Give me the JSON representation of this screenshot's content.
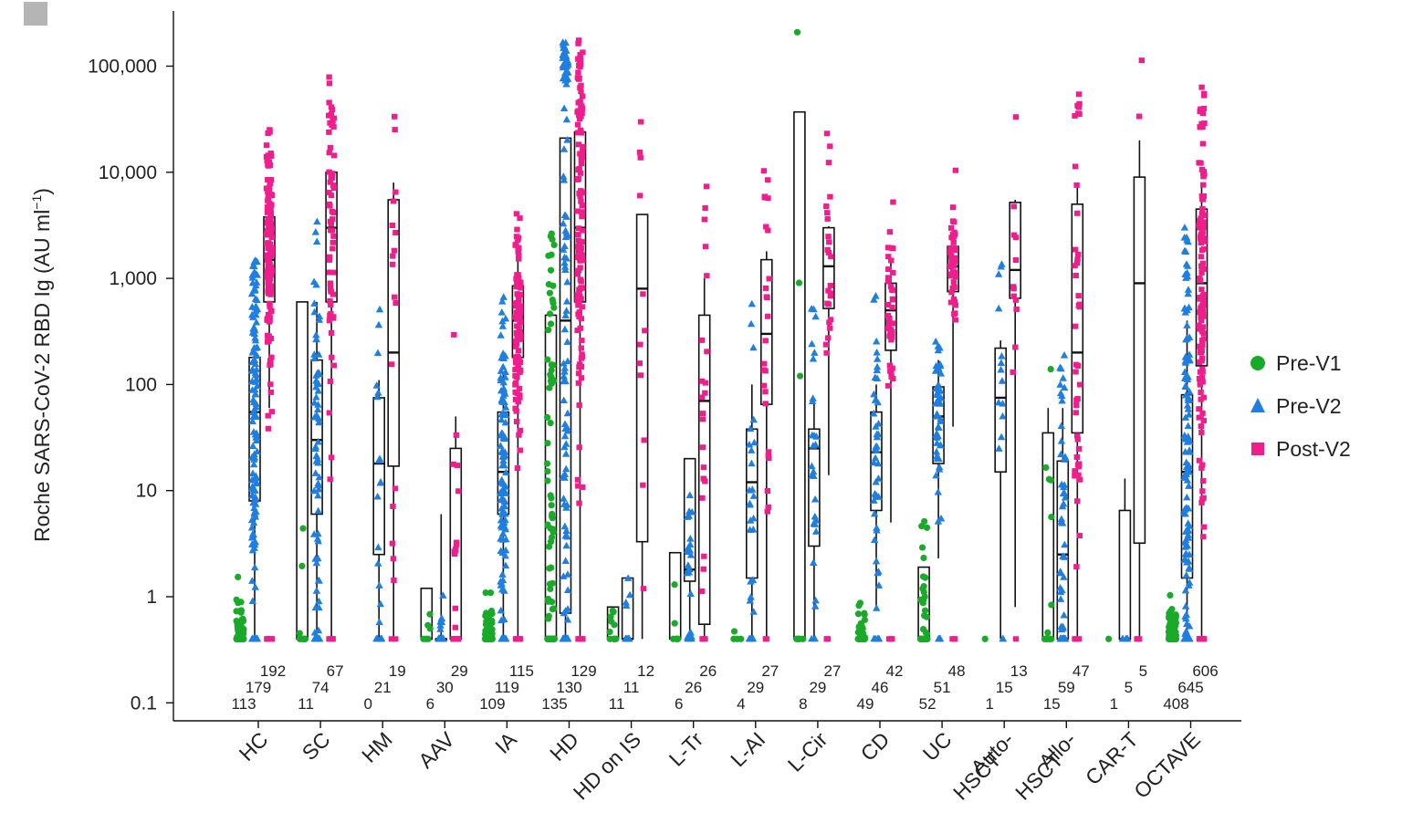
{
  "chart_data": {
    "type": "scatter",
    "ylabel": "Roche SARS-CoV-2 RBD Ig (AU ml",
    "ylabel_superscript": "−1",
    "ylabel_close": ")",
    "yscale": "log",
    "ylim": [
      0.1,
      300000
    ],
    "yticks": [
      {
        "value": 0.1,
        "label": "0.1"
      },
      {
        "value": 1,
        "label": "1"
      },
      {
        "value": 10,
        "label": "10"
      },
      {
        "value": 100,
        "label": "100"
      },
      {
        "value": 1000,
        "label": "1,000"
      },
      {
        "value": 10000,
        "label": "10,000"
      },
      {
        "value": 100000,
        "label": "100,000"
      }
    ],
    "series": [
      {
        "name": "Pre-V1",
        "color": "#1aaa2a",
        "marker": "circle"
      },
      {
        "name": "Pre-V2",
        "color": "#1f7fe0",
        "marker": "triangle"
      },
      {
        "name": "Post-V2",
        "color": "#ee1f8c",
        "marker": "square"
      }
    ],
    "categories": [
      {
        "label": [
          "HC"
        ],
        "counts": [
          113,
          179,
          192
        ],
        "boxes": [
          null,
          [
            0.4,
            8,
            55,
            180,
            190
          ],
          [
            60,
            600,
            1500,
            3800,
            3900
          ]
        ]
      },
      {
        "label": [
          "SC"
        ],
        "counts": [
          11,
          74,
          67
        ],
        "boxes": [
          [
            0.4,
            0.4,
            0.4,
            600,
            600
          ],
          [
            0.4,
            6,
            30,
            170,
            600
          ],
          [
            0.4,
            600,
            3000,
            10000,
            10000
          ]
        ]
      },
      {
        "label": [
          "HM"
        ],
        "counts": [
          0,
          21,
          19
        ],
        "boxes": [
          null,
          [
            0.4,
            2.5,
            18,
            75,
            110
          ],
          [
            0.4,
            17,
            200,
            5500,
            8000
          ]
        ]
      },
      {
        "label": [
          "AAV"
        ],
        "counts": [
          6,
          30,
          29
        ],
        "boxes": [
          [
            0.4,
            0.4,
            0.4,
            1.2,
            1.2
          ],
          [
            0.4,
            0.4,
            0.4,
            0.4,
            6
          ],
          [
            0.4,
            0.4,
            0.4,
            25,
            50
          ]
        ]
      },
      {
        "label": [
          "IA"
        ],
        "counts": [
          109,
          119,
          115
        ],
        "boxes": [
          null,
          [
            0.4,
            6,
            15,
            55,
            130
          ],
          [
            0.4,
            180,
            400,
            850,
            1500
          ]
        ]
      },
      {
        "label": [
          "HD"
        ],
        "counts": [
          135,
          130,
          129
        ],
        "boxes": [
          [
            0.4,
            0.4,
            0.4,
            450,
            450
          ],
          [
            0.4,
            0.7,
            400,
            21000,
            21000
          ],
          [
            0.4,
            600,
            3000,
            24000,
            24000
          ]
        ]
      },
      {
        "label": [
          "HD on IS"
        ],
        "counts": [
          11,
          11,
          12
        ],
        "boxes": [
          [
            0.4,
            0.4,
            0.4,
            0.8,
            0.8
          ],
          [
            0.4,
            0.4,
            0.4,
            1.5,
            1.5
          ],
          [
            0.4,
            3.3,
            800,
            4000,
            4000
          ]
        ]
      },
      {
        "label": [
          "L-Tr"
        ],
        "counts": [
          6,
          26,
          26
        ],
        "boxes": [
          [
            0.4,
            0.4,
            0.4,
            2.6,
            2.6
          ],
          [
            0.4,
            1.4,
            1.8,
            20,
            20
          ],
          [
            0.4,
            0.55,
            70,
            450,
            1000
          ]
        ]
      },
      {
        "label": [
          "L-AI"
        ],
        "counts": [
          4,
          29,
          27
        ],
        "boxes": [
          null,
          [
            0.4,
            1.5,
            12,
            38,
            100
          ],
          [
            0.4,
            65,
            300,
            1500,
            1800
          ]
        ]
      },
      {
        "label": [
          "L-Cir"
        ],
        "counts": [
          8,
          29,
          27
        ],
        "boxes": [
          [
            0.4,
            0.4,
            0.4,
            37000,
            37000
          ],
          [
            0.4,
            3,
            25,
            38,
            75
          ],
          [
            14,
            520,
            1300,
            3000,
            3100
          ]
        ]
      },
      {
        "label": [
          "CD"
        ],
        "counts": [
          49,
          46,
          42
        ],
        "boxes": [
          null,
          [
            0.8,
            6.5,
            23,
            55,
            100
          ],
          [
            5,
            210,
            500,
            900,
            1500
          ]
        ]
      },
      {
        "label": [
          "UC"
        ],
        "counts": [
          52,
          51,
          48
        ],
        "boxes": [
          [
            0.4,
            0.4,
            0.4,
            1.9,
            1.9
          ],
          [
            2.3,
            18,
            50,
            95,
            170
          ],
          [
            40,
            750,
            1300,
            2000,
            2000
          ]
        ]
      },
      {
        "label": [
          "Auto-",
          "HSCT"
        ],
        "counts": [
          1,
          15,
          13
        ],
        "boxes": [
          null,
          [
            0.4,
            15,
            75,
            220,
            260
          ],
          [
            0.8,
            650,
            1200,
            5200,
            5500
          ]
        ]
      },
      {
        "label": [
          "Allo-",
          "HSCT"
        ],
        "counts": [
          15,
          59,
          47
        ],
        "boxes": [
          [
            0.4,
            0.4,
            0.4,
            35,
            60
          ],
          [
            0.4,
            0.4,
            2.5,
            19,
            60
          ],
          [
            0.4,
            35,
            200,
            5000,
            8000
          ]
        ]
      },
      {
        "label": [
          "CAR-T"
        ],
        "counts": [
          1,
          5,
          5
        ],
        "boxes": [
          null,
          [
            0.4,
            0.4,
            0.4,
            6.5,
            13
          ],
          [
            0.4,
            3.2,
            900,
            9000,
            20000
          ]
        ]
      },
      {
        "label": [
          "OCTAVE"
        ],
        "counts": [
          408,
          645,
          606
        ],
        "boxes": [
          null,
          [
            0.4,
            1.5,
            15,
            80,
            400
          ],
          [
            0.4,
            150,
            900,
            4500,
            8000
          ]
        ]
      }
    ]
  }
}
